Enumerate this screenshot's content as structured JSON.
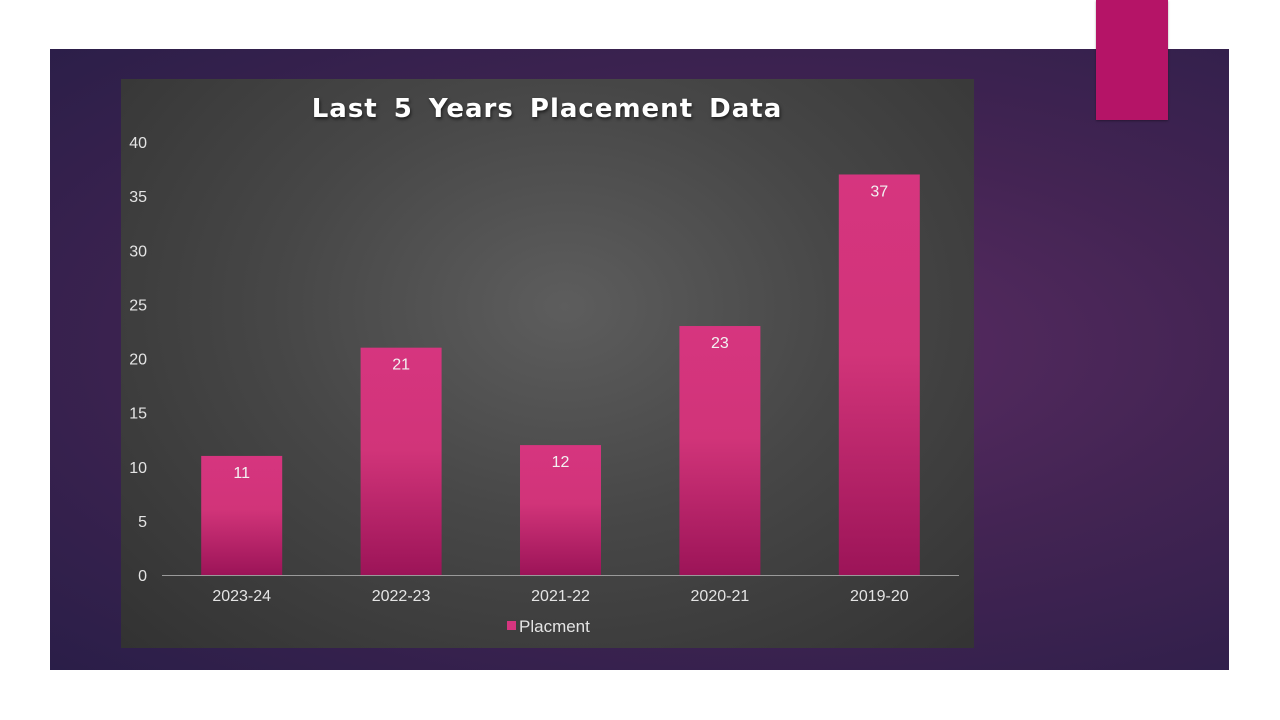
{
  "chart_data": {
    "type": "bar",
    "title": "Last 5 Years Placement Data",
    "categories": [
      "2023-24",
      "2022-23",
      "2021-22",
      "2020-21",
      "2019-20"
    ],
    "series": [
      {
        "name": "Placment",
        "values": [
          11,
          21,
          12,
          23,
          37
        ],
        "color": "#d6357f"
      }
    ],
    "xlabel": "",
    "ylabel": "",
    "ylim": [
      0,
      40
    ],
    "yticks": [
      0,
      5,
      10,
      15,
      20,
      25,
      30,
      35,
      40
    ],
    "data_labels": true,
    "grid": false,
    "legend_position": "bottom"
  },
  "colors": {
    "slide_background": "#432453",
    "chart_background": "#4a4a4a",
    "accent": "#b51467",
    "bar_top": "#d6357f",
    "bar_bottom": "#9c1458"
  }
}
